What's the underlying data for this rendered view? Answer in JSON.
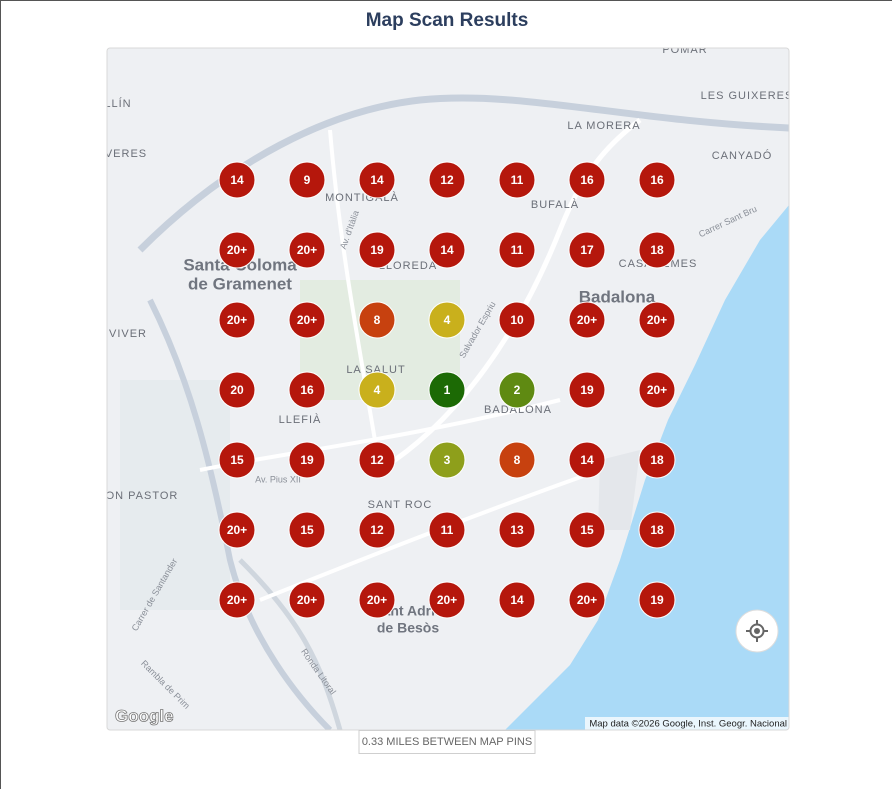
{
  "header": {
    "title": "Map Scan Results"
  },
  "map_labels": [
    "Santa Coloma",
    "de Gramenet",
    "Badalona",
    "MONTIGALÀ",
    "BUFALÀ",
    "LA MORERA",
    "LES GUIXERES",
    "CASAGEMES",
    "LLOREDA",
    "LA SALUT",
    "LLEFIÀ",
    "BADALONA",
    "SANT ROC",
    "Sant Adrià",
    "de Besòs",
    "VIVER",
    "ON PASTOR",
    "POMAR",
    "CANYADÓ",
    "VERES",
    "LLÍN",
    "Av. d'Itàlia",
    "Salvador Espriu",
    "Ronda Litoral",
    "Carrer de Santander",
    "Rambla de Prim",
    "Carrer Sant Bru",
    "Av. Pius XII"
  ],
  "pins": [
    [
      {
        "label": "14",
        "color": "#b5170c"
      },
      {
        "label": "9",
        "color": "#b5170c"
      },
      {
        "label": "14",
        "color": "#b5170c"
      },
      {
        "label": "12",
        "color": "#b5170c"
      },
      {
        "label": "11",
        "color": "#b5170c"
      },
      {
        "label": "16",
        "color": "#b5170c"
      },
      {
        "label": "16",
        "color": "#b5170c"
      }
    ],
    [
      {
        "label": "20+",
        "color": "#b5170c"
      },
      {
        "label": "20+",
        "color": "#b5170c"
      },
      {
        "label": "19",
        "color": "#b5170c"
      },
      {
        "label": "14",
        "color": "#b5170c"
      },
      {
        "label": "11",
        "color": "#b5170c"
      },
      {
        "label": "17",
        "color": "#b5170c"
      },
      {
        "label": "18",
        "color": "#b5170c"
      }
    ],
    [
      {
        "label": "20+",
        "color": "#b5170c"
      },
      {
        "label": "20+",
        "color": "#b5170c"
      },
      {
        "label": "8",
        "color": "#c7410f"
      },
      {
        "label": "4",
        "color": "#c9b01c"
      },
      {
        "label": "10",
        "color": "#b5170c"
      },
      {
        "label": "20+",
        "color": "#b5170c"
      },
      {
        "label": "20+",
        "color": "#b5170c"
      }
    ],
    [
      {
        "label": "20",
        "color": "#b5170c"
      },
      {
        "label": "16",
        "color": "#b5170c"
      },
      {
        "label": "4",
        "color": "#c9b01c"
      },
      {
        "label": "1",
        "color": "#1c6a05"
      },
      {
        "label": "2",
        "color": "#5f8a12"
      },
      {
        "label": "19",
        "color": "#b5170c"
      },
      {
        "label": "20+",
        "color": "#b5170c"
      }
    ],
    [
      {
        "label": "15",
        "color": "#b5170c"
      },
      {
        "label": "19",
        "color": "#b5170c"
      },
      {
        "label": "12",
        "color": "#b5170c"
      },
      {
        "label": "3",
        "color": "#8e9f1b"
      },
      {
        "label": "8",
        "color": "#c7410f"
      },
      {
        "label": "14",
        "color": "#b5170c"
      },
      {
        "label": "18",
        "color": "#b5170c"
      }
    ],
    [
      {
        "label": "20+",
        "color": "#b5170c"
      },
      {
        "label": "15",
        "color": "#b5170c"
      },
      {
        "label": "12",
        "color": "#b5170c"
      },
      {
        "label": "11",
        "color": "#b5170c"
      },
      {
        "label": "13",
        "color": "#b5170c"
      },
      {
        "label": "15",
        "color": "#b5170c"
      },
      {
        "label": "18",
        "color": "#b5170c"
      }
    ],
    [
      {
        "label": "20+",
        "color": "#b5170c"
      },
      {
        "label": "20+",
        "color": "#b5170c"
      },
      {
        "label": "20+",
        "color": "#b5170c"
      },
      {
        "label": "20+",
        "color": "#b5170c"
      },
      {
        "label": "14",
        "color": "#b5170c"
      },
      {
        "label": "20+",
        "color": "#b5170c"
      },
      {
        "label": "19",
        "color": "#b5170c"
      }
    ]
  ],
  "map_footer": {
    "logo": "Google",
    "attribution": "Map data ©2026 Google, Inst. Geogr. Nacional"
  },
  "scale_button": "0.33 MILES BETWEEN MAP PINS"
}
